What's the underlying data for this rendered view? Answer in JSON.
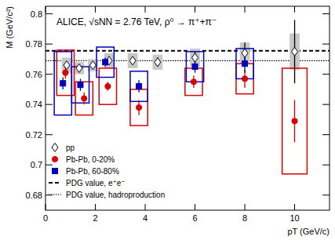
{
  "chart_data": {
    "type": "scatter",
    "title": "ALICE, √sNN = 2.76 TeV, ρ⁰ → π⁺+π⁻",
    "x_label": "pT (GeV/c)",
    "y_label": "M (GeV/c²)",
    "xlim": [
      0,
      11.4
    ],
    "ylim": [
      0.67,
      0.805
    ],
    "xticks": [
      0,
      2,
      4,
      6,
      8,
      10
    ],
    "yticks": [
      0.68,
      0.7,
      0.72,
      0.74,
      0.76,
      0.78,
      0.8
    ],
    "grid": false,
    "legend": "bottom left",
    "series": [
      {
        "name": "pp",
        "color": "#000000",
        "marker": "open-diamond",
        "x": [
          0.85,
          1.35,
          1.9,
          2.55,
          3.5,
          4.5,
          6,
          8,
          10
        ],
        "values": [
          0.766,
          0.764,
          0.766,
          0.769,
          0.769,
          0.768,
          0.771,
          0.774,
          0.775
        ],
        "errors": [
          0.002,
          0.002,
          0.002,
          0.002,
          0.002,
          0.003,
          0.004,
          0.007,
          0.021
        ],
        "sys_errors": [
          0.005,
          0.004,
          0.004,
          0.005,
          0.005,
          0.005,
          0.006,
          0.007,
          0.012
        ],
        "x_errors": [
          0.2,
          0.2,
          0.2,
          0.2,
          0.2,
          0.2,
          0.2,
          0.2,
          0.2
        ]
      },
      {
        "name": "Pb-Pb, 0-20%",
        "color": "#dd0000",
        "marker": "circle",
        "x": [
          0.8,
          1.55,
          2.5,
          3.75,
          5.95,
          8,
          10
        ],
        "values": [
          0.761,
          0.744,
          0.752,
          0.738,
          0.755,
          0.757,
          0.729
        ],
        "errors": [
          0.004,
          0.004,
          0.003,
          0.005,
          0.004,
          0.006,
          0.014
        ],
        "sys_errors": [
          0.015,
          0.011,
          0.012,
          0.012,
          0.009,
          0.01,
          0.035
        ],
        "x_errors": [
          0.35,
          0.35,
          0.35,
          0.35,
          0.35,
          0.35,
          0.5
        ]
      },
      {
        "name": "Pb-Pb, 60-80%",
        "color": "#0000bb",
        "marker": "square",
        "x": [
          0.7,
          1.4,
          2.4,
          3.75,
          6,
          8
        ],
        "values": [
          0.754,
          0.753,
          0.768,
          0.752,
          0.765,
          0.767
        ],
        "errors": [
          0.004,
          0.004,
          0.003,
          0.004,
          0.004,
          0.006
        ],
        "sys_errors": [
          0.021,
          0.012,
          0.01,
          0.01,
          0.01,
          0.01
        ],
        "x_errors": [
          0.35,
          0.35,
          0.35,
          0.35,
          0.35,
          0.35
        ]
      }
    ],
    "reference_lines": [
      {
        "name": "PDG value, e⁺e⁻",
        "value": 0.7755,
        "line_style": "dashed"
      },
      {
        "name": "PDG value, hadroproduction",
        "value": 0.769,
        "line_style": "dotted"
      }
    ]
  }
}
